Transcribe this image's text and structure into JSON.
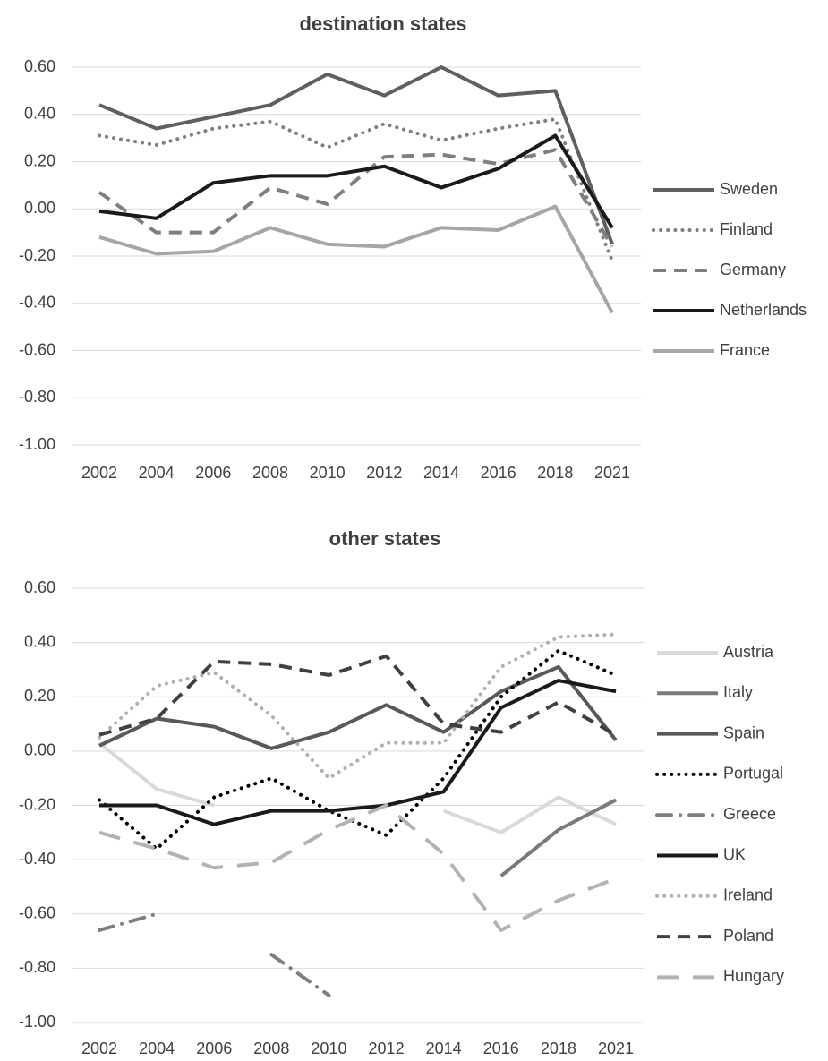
{
  "chart_data": [
    {
      "type": "line",
      "title": "destination states",
      "categories": [
        "2002",
        "2004",
        "2006",
        "2008",
        "2010",
        "2012",
        "2014",
        "2016",
        "2018",
        "2021"
      ],
      "ylim": [
        -1.0,
        0.6
      ],
      "yticks": [
        {
          "value": 0.6,
          "label": "0.60"
        },
        {
          "value": 0.4,
          "label": "0.40"
        },
        {
          "value": 0.2,
          "label": "0.20"
        },
        {
          "value": 0,
          "label": "0.00"
        },
        {
          "value": -0.2,
          "label": "-0.20"
        },
        {
          "value": -0.4,
          "label": "-0.40"
        },
        {
          "value": -0.6,
          "label": "-0.60"
        },
        {
          "value": -0.8,
          "label": "-0.80"
        },
        {
          "value": -1.0,
          "label": "-1.00"
        }
      ],
      "grid": true,
      "legend": "right",
      "series": [
        {
          "name": "Sweden",
          "color": "#5f5f5f",
          "dash": "solid",
          "values": [
            0.44,
            0.34,
            0.39,
            0.44,
            0.57,
            0.48,
            0.6,
            0.48,
            0.5,
            -0.15
          ]
        },
        {
          "name": "Finland",
          "color": "#7f7f7f",
          "dash": "dot",
          "values": [
            0.31,
            0.27,
            0.34,
            0.37,
            0.26,
            0.36,
            0.29,
            0.34,
            0.38,
            -0.22
          ]
        },
        {
          "name": "Germany",
          "color": "#7f7f7f",
          "dash": "dash",
          "values": [
            0.07,
            -0.1,
            -0.1,
            0.09,
            0.02,
            0.22,
            0.23,
            0.19,
            0.25,
            -0.16
          ]
        },
        {
          "name": "Netherlands",
          "color": "#1a1a1a",
          "dash": "solid",
          "values": [
            -0.01,
            -0.04,
            0.11,
            0.14,
            0.14,
            0.18,
            0.09,
            0.17,
            0.31,
            -0.08
          ]
        },
        {
          "name": "France",
          "color": "#a6a6a6",
          "dash": "solid",
          "values": [
            -0.12,
            -0.19,
            -0.18,
            -0.08,
            -0.15,
            -0.16,
            -0.08,
            -0.09,
            0.01,
            -0.44
          ]
        }
      ]
    },
    {
      "type": "line",
      "title": "other states",
      "categories": [
        "2002",
        "2004",
        "2006",
        "2008",
        "2010",
        "2012",
        "2014",
        "2016",
        "2018",
        "2021"
      ],
      "ylim": [
        -1.0,
        0.6
      ],
      "yticks": [
        {
          "value": 0.6,
          "label": "0.60"
        },
        {
          "value": 0.4,
          "label": "0.40"
        },
        {
          "value": 0.2,
          "label": "0.20"
        },
        {
          "value": 0,
          "label": "0.00"
        },
        {
          "value": -0.2,
          "label": "-0.20"
        },
        {
          "value": -0.4,
          "label": "-0.40"
        },
        {
          "value": -0.6,
          "label": "-0.60"
        },
        {
          "value": -0.8,
          "label": "-0.80"
        },
        {
          "value": -1.0,
          "label": "-1.00"
        }
      ],
      "grid": true,
      "legend": "right",
      "series": [
        {
          "name": "Austria",
          "color": "#d9d9d9",
          "dash": "solid",
          "values": [
            0.03,
            -0.14,
            -0.2,
            null,
            null,
            null,
            -0.22,
            -0.3,
            -0.17,
            -0.27
          ]
        },
        {
          "name": "Italy",
          "color": "#7a7a7a",
          "dash": "solid",
          "values": [
            null,
            null,
            null,
            null,
            null,
            null,
            null,
            -0.46,
            -0.29,
            -0.18
          ]
        },
        {
          "name": "Spain",
          "color": "#595959",
          "dash": "solid",
          "values": [
            0.02,
            0.12,
            0.09,
            0.01,
            0.07,
            0.17,
            0.07,
            0.22,
            0.31,
            0.04
          ]
        },
        {
          "name": "Portugal",
          "color": "#000000",
          "dash": "dot",
          "values": [
            -0.18,
            -0.36,
            -0.17,
            -0.1,
            -0.22,
            -0.31,
            -0.1,
            0.2,
            0.37,
            0.28
          ]
        },
        {
          "name": "Greece",
          "color": "#7f7f7f",
          "dash": "dashdot",
          "values": [
            -0.66,
            -0.6,
            null,
            -0.75,
            -0.9,
            null,
            null,
            null,
            null,
            null
          ]
        },
        {
          "name": "UK",
          "color": "#1a1a1a",
          "dash": "solid",
          "values": [
            -0.2,
            -0.2,
            -0.27,
            -0.22,
            -0.22,
            -0.2,
            -0.15,
            0.16,
            0.26,
            0.22
          ]
        },
        {
          "name": "Ireland",
          "color": "#b0b0b0",
          "dash": "dot",
          "values": [
            0.05,
            0.24,
            0.29,
            0.13,
            -0.1,
            0.03,
            0.03,
            0.31,
            0.42,
            0.43
          ]
        },
        {
          "name": "Poland",
          "color": "#404040",
          "dash": "dash",
          "values": [
            0.06,
            0.12,
            0.33,
            0.32,
            0.28,
            0.35,
            0.1,
            0.07,
            0.18,
            0.06
          ]
        },
        {
          "name": "Hungary",
          "color": "#b3b3b3",
          "dash": "longdash",
          "values": [
            -0.3,
            -0.36,
            -0.43,
            -0.41,
            -0.29,
            -0.2,
            -0.38,
            -0.66,
            -0.55,
            -0.47
          ]
        }
      ]
    }
  ]
}
